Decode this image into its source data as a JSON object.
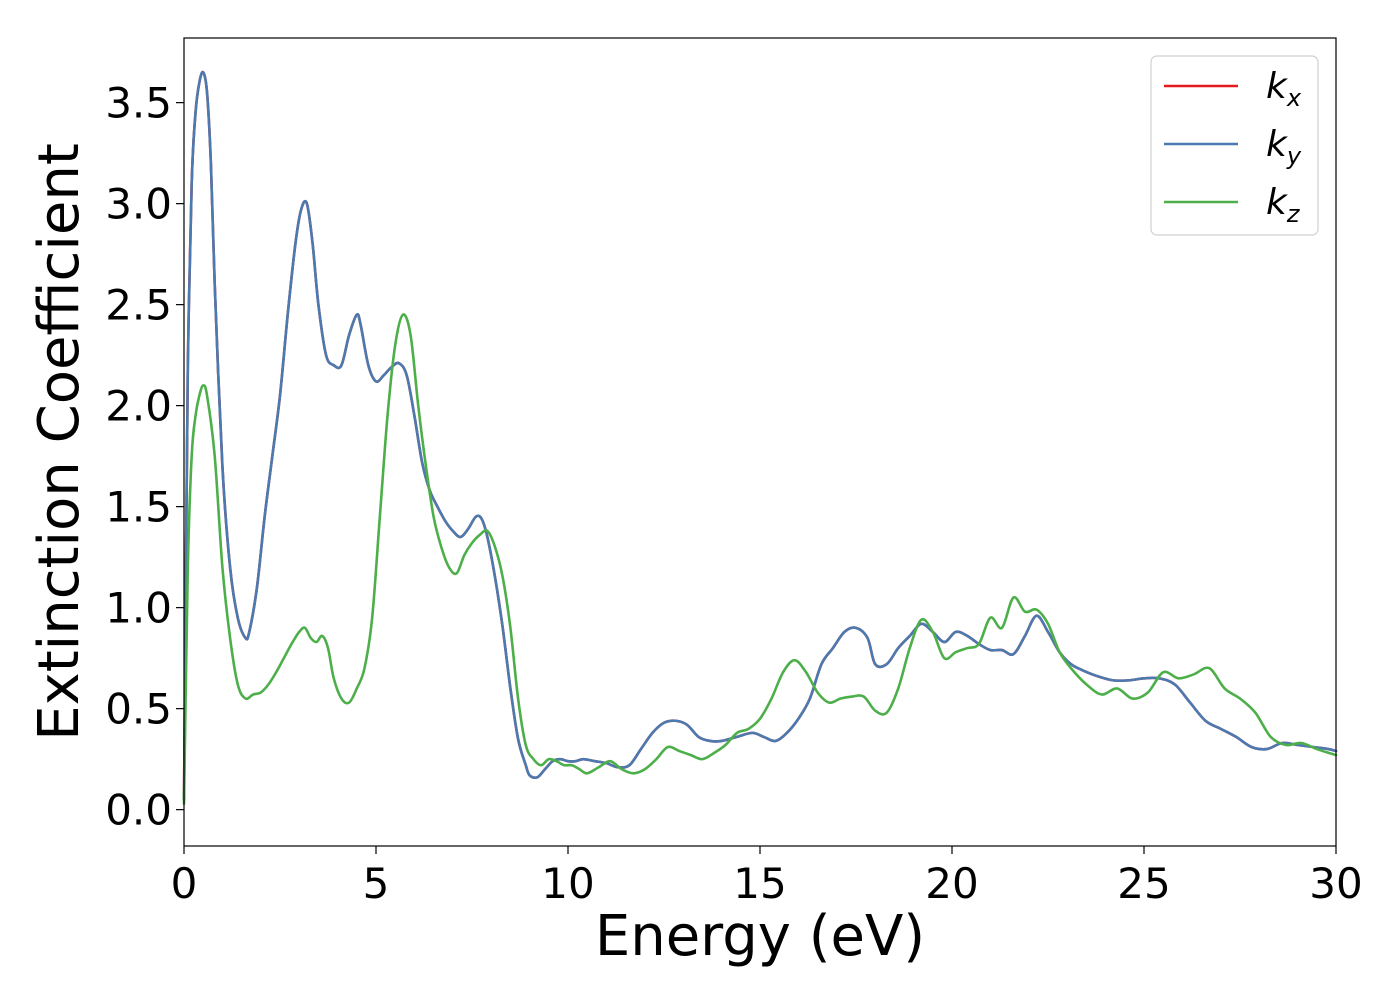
{
  "chart_data": {
    "type": "line",
    "title": "",
    "xlabel": "Energy (eV)",
    "ylabel": "Extinction Coefficient",
    "xlim": [
      0,
      30
    ],
    "ylim": [
      -0.18,
      3.82
    ],
    "xticks": [
      0,
      5,
      10,
      15,
      20,
      25,
      30
    ],
    "xtick_labels": [
      "0",
      "5",
      "10",
      "15",
      "20",
      "25",
      "30"
    ],
    "yticks": [
      0.0,
      0.5,
      1.0,
      1.5,
      2.0,
      2.5,
      3.0,
      3.5
    ],
    "ytick_labels": [
      "0.0",
      "0.5",
      "1.0",
      "1.5",
      "2.0",
      "2.5",
      "3.0",
      "3.5"
    ],
    "grid": false,
    "legend_position": "top-right",
    "series": [
      {
        "name": "k",
        "subscript": "x",
        "color": "#e41a1c",
        "x": [
          0.0,
          0.05,
          0.1,
          0.2,
          0.3,
          0.4,
          0.5,
          0.6,
          0.7,
          0.8,
          1.0,
          1.2,
          1.4,
          1.6,
          1.7,
          1.9,
          2.1,
          2.3,
          2.5,
          2.7,
          2.9,
          3.05,
          3.2,
          3.35,
          3.5,
          3.7,
          3.9,
          4.1,
          4.3,
          4.5,
          4.6,
          4.8,
          5.0,
          5.2,
          5.4,
          5.6,
          5.8,
          6.0,
          6.2,
          6.4,
          6.6,
          6.8,
          7.0,
          7.2,
          7.4,
          7.6,
          7.75,
          7.9,
          8.1,
          8.3,
          8.5,
          8.7,
          8.9,
          9.0,
          9.2,
          9.4,
          9.6,
          9.8,
          10.0,
          10.2,
          10.4,
          10.7,
          11.0,
          11.3,
          11.6,
          11.9,
          12.2,
          12.5,
          12.8,
          13.1,
          13.4,
          13.7,
          14.0,
          14.4,
          14.8,
          15.1,
          15.4,
          15.7,
          16.0,
          16.3,
          16.6,
          16.9,
          17.2,
          17.5,
          17.8,
          18.0,
          18.3,
          18.6,
          18.9,
          19.2,
          19.5,
          19.8,
          20.1,
          20.4,
          20.7,
          21.0,
          21.3,
          21.6,
          21.9,
          22.2,
          22.5,
          22.8,
          23.1,
          23.4,
          23.8,
          24.2,
          24.6,
          25.0,
          25.4,
          25.8,
          26.2,
          26.6,
          27.0,
          27.4,
          27.8,
          28.2,
          28.6,
          29.0,
          29.4,
          29.8,
          30.0
        ],
        "y": [
          0.05,
          1.2,
          2.2,
          3.1,
          3.45,
          3.6,
          3.65,
          3.55,
          3.2,
          2.6,
          1.7,
          1.2,
          0.95,
          0.85,
          0.88,
          1.1,
          1.45,
          1.75,
          2.05,
          2.45,
          2.8,
          2.97,
          3.0,
          2.8,
          2.5,
          2.25,
          2.2,
          2.2,
          2.35,
          2.45,
          2.4,
          2.2,
          2.12,
          2.15,
          2.19,
          2.21,
          2.15,
          1.95,
          1.72,
          1.58,
          1.5,
          1.43,
          1.38,
          1.35,
          1.39,
          1.45,
          1.44,
          1.35,
          1.15,
          0.9,
          0.6,
          0.35,
          0.22,
          0.17,
          0.16,
          0.2,
          0.24,
          0.25,
          0.24,
          0.24,
          0.25,
          0.24,
          0.23,
          0.21,
          0.22,
          0.3,
          0.38,
          0.43,
          0.44,
          0.42,
          0.36,
          0.34,
          0.34,
          0.36,
          0.38,
          0.36,
          0.34,
          0.38,
          0.45,
          0.55,
          0.72,
          0.8,
          0.88,
          0.9,
          0.85,
          0.72,
          0.72,
          0.8,
          0.86,
          0.92,
          0.88,
          0.83,
          0.88,
          0.86,
          0.82,
          0.79,
          0.79,
          0.77,
          0.86,
          0.96,
          0.88,
          0.78,
          0.72,
          0.69,
          0.66,
          0.64,
          0.64,
          0.65,
          0.65,
          0.62,
          0.53,
          0.44,
          0.4,
          0.36,
          0.31,
          0.3,
          0.33,
          0.32,
          0.31,
          0.3,
          0.29
        ]
      },
      {
        "name": "k",
        "subscript": "y",
        "color": "#4a7ab0",
        "x": [
          0.0,
          0.05,
          0.1,
          0.2,
          0.3,
          0.4,
          0.5,
          0.6,
          0.7,
          0.8,
          1.0,
          1.2,
          1.4,
          1.6,
          1.7,
          1.9,
          2.1,
          2.3,
          2.5,
          2.7,
          2.9,
          3.05,
          3.2,
          3.35,
          3.5,
          3.7,
          3.9,
          4.1,
          4.3,
          4.5,
          4.6,
          4.8,
          5.0,
          5.2,
          5.4,
          5.6,
          5.8,
          6.0,
          6.2,
          6.4,
          6.6,
          6.8,
          7.0,
          7.2,
          7.4,
          7.6,
          7.75,
          7.9,
          8.1,
          8.3,
          8.5,
          8.7,
          8.9,
          9.0,
          9.2,
          9.4,
          9.6,
          9.8,
          10.0,
          10.2,
          10.4,
          10.7,
          11.0,
          11.3,
          11.6,
          11.9,
          12.2,
          12.5,
          12.8,
          13.1,
          13.4,
          13.7,
          14.0,
          14.4,
          14.8,
          15.1,
          15.4,
          15.7,
          16.0,
          16.3,
          16.6,
          16.9,
          17.2,
          17.5,
          17.8,
          18.0,
          18.3,
          18.6,
          18.9,
          19.2,
          19.5,
          19.8,
          20.1,
          20.4,
          20.7,
          21.0,
          21.3,
          21.6,
          21.9,
          22.2,
          22.5,
          22.8,
          23.1,
          23.4,
          23.8,
          24.2,
          24.6,
          25.0,
          25.4,
          25.8,
          26.2,
          26.6,
          27.0,
          27.4,
          27.8,
          28.2,
          28.6,
          29.0,
          29.4,
          29.8,
          30.0
        ],
        "y": [
          0.05,
          1.2,
          2.2,
          3.1,
          3.45,
          3.6,
          3.65,
          3.55,
          3.2,
          2.6,
          1.7,
          1.2,
          0.95,
          0.85,
          0.88,
          1.1,
          1.45,
          1.75,
          2.05,
          2.45,
          2.8,
          2.97,
          3.0,
          2.8,
          2.5,
          2.25,
          2.2,
          2.2,
          2.35,
          2.45,
          2.4,
          2.2,
          2.12,
          2.15,
          2.19,
          2.21,
          2.15,
          1.95,
          1.72,
          1.58,
          1.5,
          1.43,
          1.38,
          1.35,
          1.39,
          1.45,
          1.44,
          1.35,
          1.15,
          0.9,
          0.6,
          0.35,
          0.22,
          0.17,
          0.16,
          0.2,
          0.24,
          0.25,
          0.24,
          0.24,
          0.25,
          0.24,
          0.23,
          0.21,
          0.22,
          0.3,
          0.38,
          0.43,
          0.44,
          0.42,
          0.36,
          0.34,
          0.34,
          0.36,
          0.38,
          0.36,
          0.34,
          0.38,
          0.45,
          0.55,
          0.72,
          0.8,
          0.88,
          0.9,
          0.85,
          0.72,
          0.72,
          0.8,
          0.86,
          0.92,
          0.88,
          0.83,
          0.88,
          0.86,
          0.82,
          0.79,
          0.79,
          0.77,
          0.86,
          0.96,
          0.88,
          0.78,
          0.72,
          0.69,
          0.66,
          0.64,
          0.64,
          0.65,
          0.65,
          0.62,
          0.53,
          0.44,
          0.4,
          0.36,
          0.31,
          0.3,
          0.33,
          0.32,
          0.31,
          0.3,
          0.29
        ]
      },
      {
        "name": "k",
        "subscript": "z",
        "color": "#4daf4a",
        "x": [
          0.0,
          0.1,
          0.2,
          0.3,
          0.4,
          0.5,
          0.6,
          0.8,
          1.0,
          1.2,
          1.4,
          1.6,
          1.8,
          2.0,
          2.2,
          2.4,
          2.6,
          2.8,
          3.0,
          3.15,
          3.3,
          3.45,
          3.6,
          3.75,
          3.9,
          4.1,
          4.3,
          4.5,
          4.7,
          4.9,
          5.1,
          5.3,
          5.5,
          5.7,
          5.9,
          6.1,
          6.3,
          6.5,
          6.7,
          6.9,
          7.1,
          7.3,
          7.5,
          7.7,
          7.9,
          8.1,
          8.3,
          8.5,
          8.7,
          8.9,
          9.1,
          9.3,
          9.5,
          9.7,
          9.9,
          10.1,
          10.3,
          10.5,
          10.8,
          11.1,
          11.4,
          11.7,
          12.0,
          12.3,
          12.6,
          12.9,
          13.2,
          13.5,
          13.8,
          14.1,
          14.4,
          14.7,
          15.0,
          15.3,
          15.6,
          15.9,
          16.2,
          16.5,
          16.8,
          17.1,
          17.4,
          17.7,
          18.0,
          18.3,
          18.6,
          18.9,
          19.2,
          19.5,
          19.8,
          20.1,
          20.4,
          20.7,
          21.0,
          21.3,
          21.6,
          21.9,
          22.2,
          22.5,
          22.8,
          23.1,
          23.5,
          23.9,
          24.3,
          24.7,
          25.1,
          25.5,
          25.9,
          26.3,
          26.7,
          27.1,
          27.5,
          27.9,
          28.3,
          28.7,
          29.1,
          29.5,
          30.0
        ],
        "y": [
          0.03,
          1.2,
          1.75,
          1.95,
          2.05,
          2.1,
          2.05,
          1.75,
          1.2,
          0.85,
          0.62,
          0.55,
          0.57,
          0.58,
          0.62,
          0.68,
          0.75,
          0.82,
          0.88,
          0.9,
          0.85,
          0.83,
          0.86,
          0.8,
          0.65,
          0.55,
          0.53,
          0.6,
          0.7,
          0.95,
          1.45,
          1.95,
          2.3,
          2.45,
          2.35,
          2.0,
          1.7,
          1.45,
          1.3,
          1.2,
          1.17,
          1.26,
          1.32,
          1.36,
          1.38,
          1.3,
          1.15,
          0.9,
          0.55,
          0.32,
          0.25,
          0.22,
          0.25,
          0.24,
          0.22,
          0.22,
          0.2,
          0.18,
          0.21,
          0.24,
          0.2,
          0.18,
          0.2,
          0.25,
          0.31,
          0.29,
          0.27,
          0.25,
          0.28,
          0.32,
          0.38,
          0.4,
          0.45,
          0.55,
          0.68,
          0.74,
          0.68,
          0.58,
          0.53,
          0.55,
          0.56,
          0.56,
          0.49,
          0.48,
          0.6,
          0.8,
          0.94,
          0.88,
          0.75,
          0.78,
          0.8,
          0.82,
          0.95,
          0.9,
          1.05,
          0.98,
          0.99,
          0.92,
          0.78,
          0.7,
          0.62,
          0.57,
          0.6,
          0.55,
          0.58,
          0.68,
          0.65,
          0.67,
          0.7,
          0.6,
          0.55,
          0.48,
          0.36,
          0.32,
          0.33,
          0.3,
          0.27
        ]
      }
    ]
  }
}
